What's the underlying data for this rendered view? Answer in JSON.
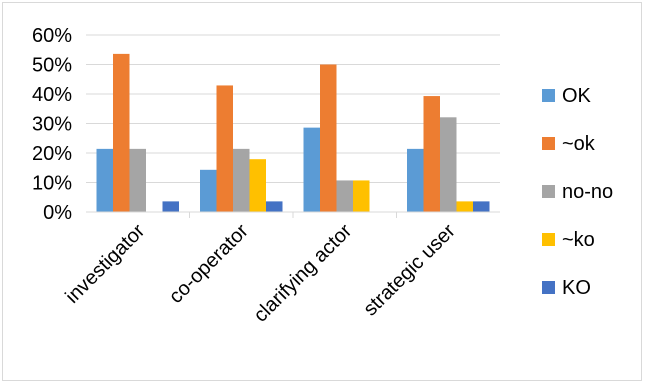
{
  "chart_data": {
    "type": "bar",
    "title": "",
    "xlabel": "",
    "ylabel": "",
    "categories": [
      "investigator",
      "co-operator",
      "clarifying actor",
      "strategic user"
    ],
    "series": [
      {
        "name": "OK",
        "color": "#5b9bd5",
        "values": [
          21.4,
          14.3,
          28.6,
          21.4
        ]
      },
      {
        "name": "~ok",
        "color": "#ed7d31",
        "values": [
          53.6,
          42.9,
          50.0,
          39.3
        ]
      },
      {
        "name": "no-no",
        "color": "#a5a5a5",
        "values": [
          21.4,
          21.4,
          10.7,
          32.1
        ]
      },
      {
        "name": "~ko",
        "color": "#ffc000",
        "values": [
          0,
          17.9,
          10.7,
          3.6
        ]
      },
      {
        "name": "KO",
        "color": "#4472c4",
        "values": [
          3.6,
          3.6,
          0,
          3.6
        ]
      }
    ],
    "ylim": [
      0,
      60
    ],
    "yticks": [
      "0%",
      "10%",
      "20%",
      "30%",
      "40%",
      "50%",
      "60%"
    ],
    "grid": true,
    "legend_position": "right"
  }
}
